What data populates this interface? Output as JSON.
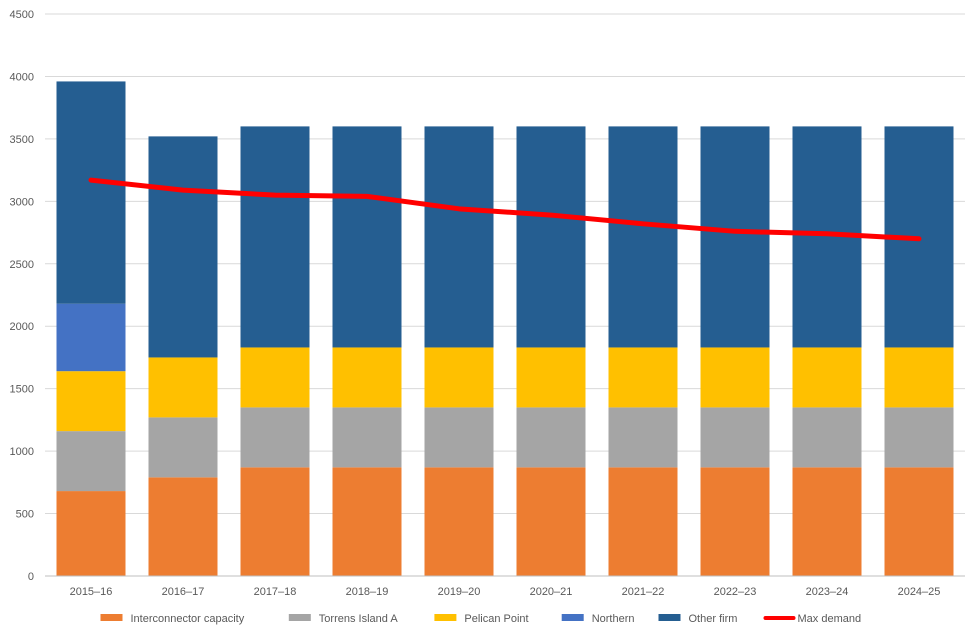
{
  "chart_data": {
    "type": "bar",
    "stacked": true,
    "categories": [
      "2015–16",
      "2016–17",
      "2017–18",
      "2018–19",
      "2019–20",
      "2020–21",
      "2021–22",
      "2022–23",
      "2023–24",
      "2024–25"
    ],
    "series": [
      {
        "name": "Interconnector capacity",
        "color": "#ED7D31",
        "values": [
          680,
          790,
          870,
          870,
          870,
          870,
          870,
          870,
          870,
          870
        ]
      },
      {
        "name": "Torrens Island A",
        "color": "#A5A5A5",
        "values": [
          480,
          480,
          480,
          480,
          480,
          480,
          480,
          480,
          480,
          480
        ]
      },
      {
        "name": "Pelican Point",
        "color": "#FFC000",
        "values": [
          480,
          480,
          480,
          480,
          480,
          480,
          480,
          480,
          480,
          480
        ]
      },
      {
        "name": "Northern",
        "color": "#4472C4",
        "values": [
          540,
          0,
          0,
          0,
          0,
          0,
          0,
          0,
          0,
          0
        ]
      },
      {
        "name": "Other firm",
        "color": "#255E91",
        "values": [
          1780,
          1770,
          1770,
          1770,
          1770,
          1770,
          1770,
          1770,
          1770,
          1770
        ]
      }
    ],
    "line_series": {
      "name": "Max demand",
      "color": "#FF0000",
      "values": [
        3170,
        3090,
        3050,
        3040,
        2940,
        2890,
        2820,
        2760,
        2740,
        2700
      ]
    },
    "ylim": [
      0,
      4500
    ],
    "yticks": [
      0,
      500,
      1000,
      1500,
      2000,
      2500,
      3000,
      3500,
      4000,
      4500
    ],
    "grid": true,
    "legend_position": "bottom"
  }
}
